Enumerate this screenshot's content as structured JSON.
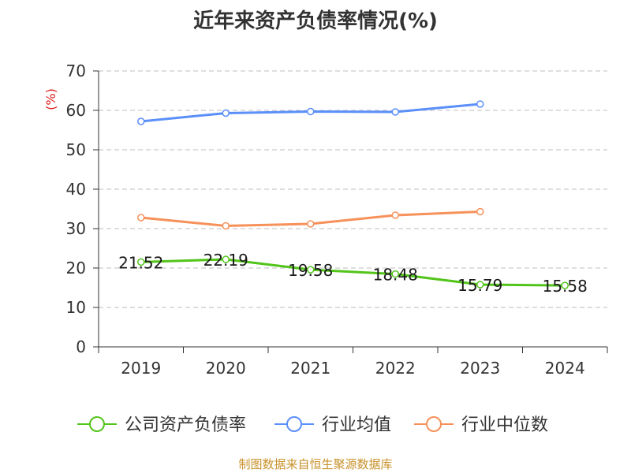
{
  "chart_data": {
    "type": "line",
    "title": "近年来资产负债率情况(%)",
    "ylabel": "(%)",
    "categories": [
      "2019",
      "2020",
      "2021",
      "2022",
      "2023",
      "2024"
    ],
    "yticks": [
      "0",
      "10",
      "20",
      "30",
      "40",
      "50",
      "60",
      "70"
    ],
    "ylim": [
      0,
      70
    ],
    "grid": "horizontal-dashed",
    "legend_position": "bottom",
    "series": [
      {
        "name": "公司资产负债率",
        "color": "#52c41a",
        "values": [
          21.52,
          22.19,
          19.58,
          18.48,
          15.79,
          15.58
        ],
        "labels": [
          "21.52",
          "22.19",
          "19.58",
          "18.48",
          "15.79",
          "15.58"
        ]
      },
      {
        "name": "行业均值",
        "color": "#5b8ff9",
        "values": [
          57.2,
          59.3,
          59.7,
          59.6,
          61.6,
          null
        ]
      },
      {
        "name": "行业中位数",
        "color": "#f6915a",
        "values": [
          32.8,
          30.7,
          31.2,
          33.4,
          34.3,
          null
        ]
      }
    ]
  },
  "source": "制图数据来自恒生聚源数据库"
}
